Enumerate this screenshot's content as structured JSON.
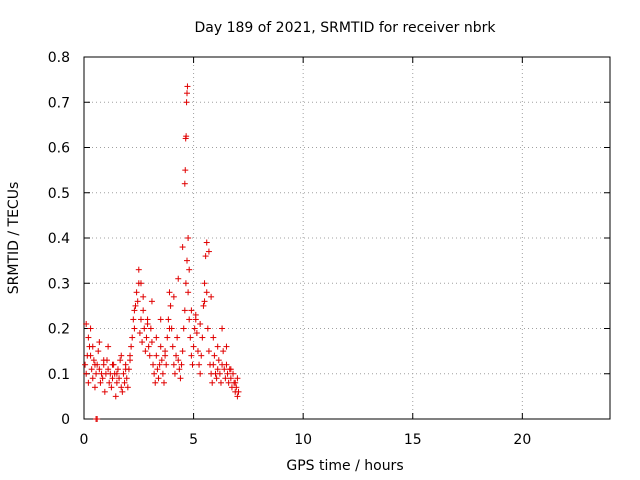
{
  "chart_data": {
    "type": "scatter",
    "title": "Day 189 of 2021, SRMTID for receiver nbrk",
    "xlabel": "GPS time / hours",
    "ylabel": "SRMTID / TECUs",
    "xlim": [
      0,
      24
    ],
    "ylim": [
      0,
      0.8
    ],
    "xticks": [
      0,
      5,
      10,
      15,
      20
    ],
    "yticks": [
      0,
      0.1,
      0.2,
      0.3,
      0.4,
      0.5,
      0.6,
      0.7,
      0.8
    ],
    "xtick_labels": [
      "0",
      "5",
      "10",
      "15",
      "20"
    ],
    "ytick_labels": [
      "0",
      "0.1",
      "0.2",
      "0.3",
      "0.4",
      "0.5",
      "0.6",
      "0.7",
      "0.8"
    ],
    "grid": true,
    "marker": "+",
    "color": "#e00000",
    "series": [
      {
        "name": "nbrk",
        "x": [
          0.05,
          0.1,
          0.15,
          0.2,
          0.25,
          0.3,
          0.35,
          0.4,
          0.45,
          0.5,
          0.55,
          0.6,
          0.65,
          0.7,
          0.75,
          0.8,
          0.85,
          0.9,
          0.95,
          1.0,
          1.05,
          1.1,
          1.15,
          1.2,
          1.25,
          1.3,
          1.35,
          1.4,
          1.45,
          1.5,
          1.55,
          1.6,
          1.65,
          1.7,
          1.75,
          1.8,
          1.85,
          1.9,
          1.95,
          2.0,
          2.05,
          2.1,
          2.15,
          2.2,
          2.25,
          2.3,
          2.35,
          2.4,
          2.45,
          2.5,
          2.55,
          2.6,
          2.65,
          2.7,
          2.75,
          2.8,
          2.85,
          2.9,
          2.95,
          3.0,
          3.05,
          3.1,
          3.15,
          3.2,
          3.25,
          3.3,
          3.35,
          3.4,
          3.45,
          3.5,
          3.55,
          3.6,
          3.65,
          3.7,
          3.75,
          3.8,
          3.85,
          3.9,
          3.95,
          4.0,
          4.05,
          4.1,
          4.15,
          4.2,
          4.25,
          4.3,
          4.35,
          4.4,
          4.45,
          4.5,
          4.55,
          4.6,
          4.65,
          4.7,
          4.75,
          4.8,
          4.85,
          4.9,
          4.95,
          5.0,
          5.05,
          5.1,
          5.15,
          5.2,
          5.25,
          5.3,
          5.35,
          5.4,
          5.45,
          5.5,
          5.55,
          5.6,
          5.65,
          5.7,
          5.75,
          5.8,
          5.85,
          5.9,
          5.95,
          6.0,
          6.05,
          6.1,
          6.15,
          6.2,
          6.25,
          6.3,
          6.35,
          6.4,
          6.45,
          6.5,
          6.55,
          6.6,
          6.65,
          6.7,
          6.75,
          6.8,
          6.85,
          6.9,
          6.95,
          7.0,
          7.05,
          0.1,
          0.2,
          0.3,
          0.4,
          0.5,
          0.7,
          0.9,
          1.1,
          1.3,
          1.5,
          1.7,
          1.9,
          2.1,
          2.3,
          2.5,
          2.6,
          2.7,
          2.9,
          3.1,
          3.3,
          3.5,
          3.7,
          3.9,
          4.1,
          4.3,
          4.5,
          4.6,
          4.62,
          4.64,
          4.66,
          4.68,
          4.7,
          4.72,
          4.75,
          4.8,
          4.9,
          5.1,
          5.3,
          5.5,
          5.6,
          5.7,
          5.8,
          5.9,
          6.1,
          6.3,
          6.5,
          6.7,
          6.9,
          7.0,
          0.55,
          0.6
        ],
        "y": [
          0.12,
          0.1,
          0.14,
          0.08,
          0.16,
          0.2,
          0.11,
          0.09,
          0.13,
          0.07,
          0.1,
          0.12,
          0.15,
          0.11,
          0.08,
          0.1,
          0.09,
          0.12,
          0.06,
          0.1,
          0.13,
          0.11,
          0.08,
          0.1,
          0.07,
          0.09,
          0.12,
          0.1,
          0.05,
          0.08,
          0.11,
          0.09,
          0.13,
          0.07,
          0.06,
          0.1,
          0.08,
          0.12,
          0.09,
          0.07,
          0.11,
          0.14,
          0.16,
          0.18,
          0.22,
          0.2,
          0.25,
          0.28,
          0.26,
          0.3,
          0.19,
          0.22,
          0.17,
          0.24,
          0.2,
          0.15,
          0.18,
          0.22,
          0.16,
          0.14,
          0.2,
          0.17,
          0.12,
          0.1,
          0.08,
          0.14,
          0.11,
          0.09,
          0.12,
          0.16,
          0.13,
          0.1,
          0.08,
          0.15,
          0.12,
          0.18,
          0.22,
          0.28,
          0.25,
          0.2,
          0.16,
          0.12,
          0.1,
          0.14,
          0.18,
          0.13,
          0.11,
          0.09,
          0.12,
          0.15,
          0.2,
          0.24,
          0.3,
          0.35,
          0.28,
          0.22,
          0.18,
          0.14,
          0.12,
          0.16,
          0.2,
          0.23,
          0.19,
          0.15,
          0.12,
          0.1,
          0.14,
          0.18,
          0.25,
          0.3,
          0.36,
          0.28,
          0.2,
          0.15,
          0.12,
          0.1,
          0.08,
          0.12,
          0.14,
          0.1,
          0.09,
          0.11,
          0.13,
          0.1,
          0.08,
          0.12,
          0.15,
          0.11,
          0.09,
          0.12,
          0.1,
          0.08,
          0.11,
          0.09,
          0.07,
          0.1,
          0.08,
          0.06,
          0.07,
          0.09,
          0.06,
          0.21,
          0.18,
          0.14,
          0.16,
          0.12,
          0.17,
          0.13,
          0.16,
          0.12,
          0.1,
          0.14,
          0.11,
          0.13,
          0.24,
          0.33,
          0.3,
          0.27,
          0.21,
          0.26,
          0.18,
          0.22,
          0.14,
          0.2,
          0.27,
          0.31,
          0.38,
          0.52,
          0.55,
          0.62,
          0.625,
          0.7,
          0.72,
          0.735,
          0.4,
          0.33,
          0.24,
          0.22,
          0.21,
          0.26,
          0.39,
          0.37,
          0.27,
          0.18,
          0.16,
          0.2,
          0.16,
          0.11,
          0.08,
          0.05,
          0.0,
          0.0
        ]
      }
    ]
  }
}
